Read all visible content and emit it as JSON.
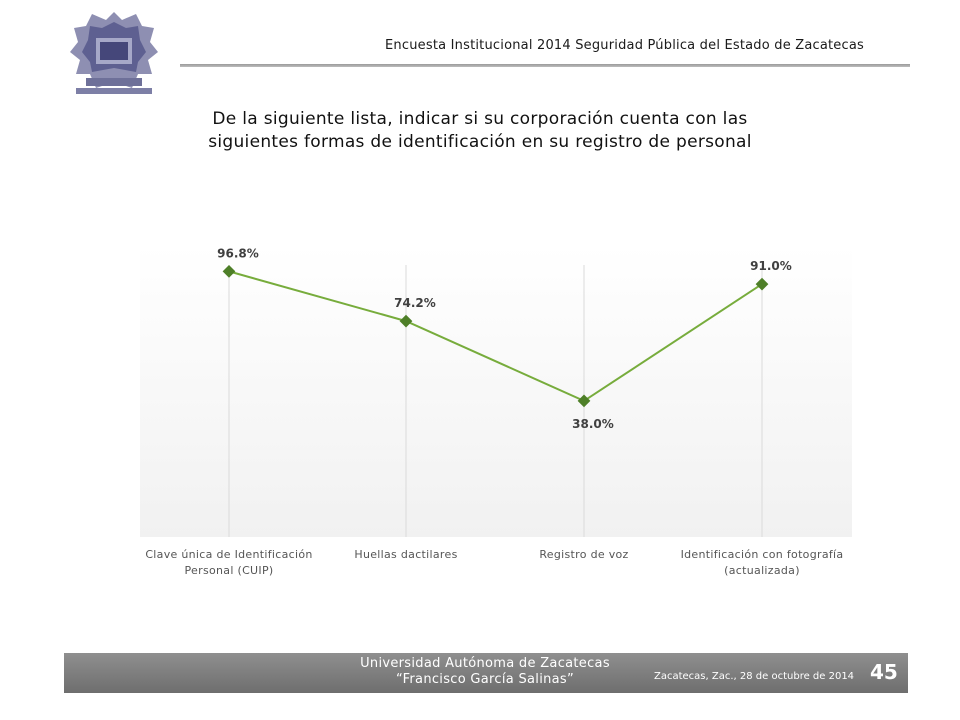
{
  "header": {
    "title": "Encuesta Institucional 2014 Seguridad Pública del Estado de Zacatecas"
  },
  "question": {
    "line1": "De la siguiente lista, indicar si su corporación cuenta con las",
    "line2": "siguientes formas de identificación en su registro de personal"
  },
  "chart_data": {
    "type": "line",
    "categories": [
      "Clave única de Identificación Personal (CUIP)",
      "Huellas dactilares",
      "Registro de voz",
      "Identificación con fotografía (actualizada)"
    ],
    "category_lines": [
      [
        "Clave única de Identificación",
        "Personal (CUIP)"
      ],
      [
        "Huellas dactilares"
      ],
      [
        "Registro de voz"
      ],
      [
        "Identificación con fotografía",
        "(actualizada)"
      ]
    ],
    "values": [
      96.8,
      74.2,
      38.0,
      91.0
    ],
    "data_labels": [
      "96.8%",
      "74.2%",
      "38.0%",
      "91.0%"
    ],
    "series_color": "#77ac3c",
    "marker_color": "#4e7f28",
    "grid": "vertical"
  },
  "footer": {
    "university": "Universidad Autónoma de Zacatecas",
    "subtitle": "“Francisco García Salinas”",
    "date": "Zacatecas, Zac., 28 de octubre de 2014",
    "page_number": "45"
  }
}
